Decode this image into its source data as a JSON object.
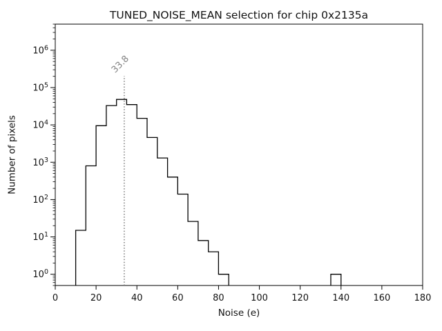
{
  "chart_data": {
    "type": "histogram-step",
    "title": "TUNED_NOISE_MEAN selection for chip 0x2135a",
    "xlabel": "Noise (e)",
    "ylabel": "Number of pixels",
    "yscale": "log",
    "xlim": [
      0,
      180
    ],
    "ylim": [
      0.5,
      5000000
    ],
    "xticks": [
      0,
      20,
      40,
      60,
      80,
      100,
      120,
      140,
      160,
      180
    ],
    "ytick_exponents": [
      0,
      1,
      2,
      3,
      4,
      5,
      6
    ],
    "grid": false,
    "legend": "none",
    "bin_width": 5,
    "segments": [
      {
        "bin_edges": [
          10,
          15,
          20,
          25,
          30,
          35,
          40,
          45,
          50,
          55,
          60,
          65,
          70,
          75,
          80,
          85
        ],
        "counts": [
          15,
          800,
          9500,
          33000,
          48000,
          35000,
          15000,
          4600,
          1300,
          400,
          140,
          26,
          8,
          4,
          1
        ]
      },
      {
        "bin_edges": [
          135,
          140
        ],
        "counts": [
          1
        ]
      }
    ],
    "annotation": {
      "label": "33.8",
      "x": 33.8,
      "rotation_deg": 45,
      "line_style": "dotted"
    },
    "colors": {
      "line": "#000000",
      "annotation": "#808080",
      "axis": "#000000",
      "text": "#111111",
      "background": "#ffffff"
    }
  }
}
